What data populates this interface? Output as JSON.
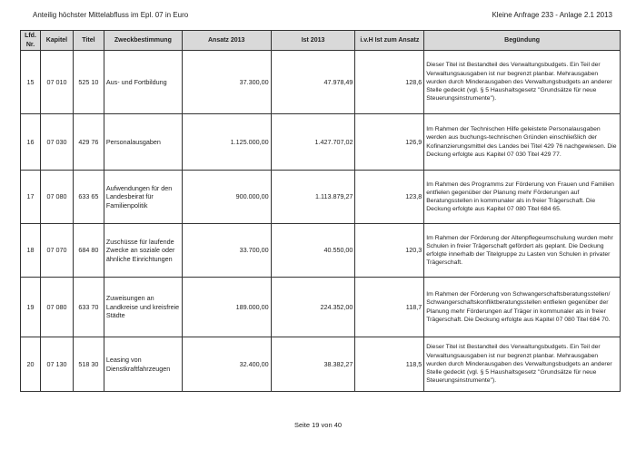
{
  "header": {
    "left": "Anteilig höchster Mittelabfluss im Epl. 07 in Euro",
    "right": "Kleine Anfrage 233 - Anlage 2.1 2013"
  },
  "table": {
    "columns": [
      "Lfd. Nr.",
      "Kapitel",
      "Titel",
      "Zweckbestimmung",
      "Ansatz 2013",
      "Ist 2013",
      "i.v.H Ist zum Ansatz",
      "Begündung"
    ],
    "rows": [
      {
        "nr": "15",
        "kapitel": "07 010",
        "titel": "525 10",
        "zweck": "Aus- und Fortbildung",
        "ansatz": "37.300,00",
        "ist": "47.978,49",
        "ivh": "128,6",
        "begruendung": "Dieser Titel ist Bestandteil des Verwaltungsbudgets. Ein Teil der Verwaltungsausgaben ist nur begrenzt planbar. Mehrausgaben wurden durch Minderausgaben des Verwaltungsbudgets an anderer Stelle gedeckt (vgl. § 5 Haushaltsgesetz \"Grundsätze für neue Steuerungsinstrumente\")."
      },
      {
        "nr": "16",
        "kapitel": "07 030",
        "titel": "429 76",
        "zweck": "Personalausgaben",
        "ansatz": "1.125.000,00",
        "ist": "1.427.707,02",
        "ivh": "126,9",
        "begruendung": "Im Rahmen der Technischen Hilfe geleistete Personalausgaben werden aus buchungs-technischen Gründen einschließlich der Kofinanzierungsmittel des Landes bei Titel 429 76 nachgewiesen. Die Deckung erfolgte aus Kapitel 07 030 Titel 429 77."
      },
      {
        "nr": "17",
        "kapitel": "07 080",
        "titel": "633 65",
        "zweck": "Aufwendungen für den Landesbeirat für Familienpolitik",
        "ansatz": "900.000,00",
        "ist": "1.113.879,27",
        "ivh": "123,8",
        "begruendung": "Im Rahmen des Programms zur Förderung von Frauen und Familien entfielen gegenüber der Planung mehr Förderungen auf Beratungsstellen in kommunaler als in freier Trägerschaft. Die Deckung erfolgte aus Kapitel 07 080 Titel 684 65."
      },
      {
        "nr": "18",
        "kapitel": "07 070",
        "titel": "684 80",
        "zweck": "Zuschüsse für laufende Zwecke an soziale oder ähnliche Einrichtungen",
        "ansatz": "33.700,00",
        "ist": "40.550,00",
        "ivh": "120,3",
        "begruendung": "Im Rahmen der Förderung der Altenpflegeumschulung wurden mehr Schulen in freier Trägerschaft gefördert als geplant. Die Deckung erfolgte innerhalb der Titelgruppe zu Lasten von Schulen in privater Trägerschaft."
      },
      {
        "nr": "19",
        "kapitel": "07 080",
        "titel": "633 70",
        "zweck": "Zuweisungen an Landkreise und kreisfreie Städte",
        "ansatz": "189.000,00",
        "ist": "224.352,00",
        "ivh": "118,7",
        "begruendung": "Im Rahmen der Förderung von Schwangerschaftsberatungsstellen/ Schwangerschaftskonfliktberatungsstellen entfielen gegenüber der Planung mehr Förderungen auf Träger in kommunaler als in freier Trägerschaft. Die Deckung erfolgte aus Kapitel 07 080 Titel 684 70."
      },
      {
        "nr": "20",
        "kapitel": "07 130",
        "titel": "518 30",
        "zweck": "Leasing von Dienstkraftfahrzeugen",
        "ansatz": "32.400,00",
        "ist": "38.382,27",
        "ivh": "118,5",
        "begruendung": "Dieser Titel ist Bestandteil des Verwaltungsbudgets. Ein Teil der Verwaltungsausgaben ist nur begrenzt planbar. Mehrausgaben wurden durch Minderausgaben des Verwaltungsbudgets an anderer Stelle gedeckt (vgl. § 5 Haushaltsgesetz \"Grundsätze für neue Steuerungsinstrumente\")."
      }
    ]
  },
  "footer": {
    "page": "Seite 19 von 40"
  }
}
